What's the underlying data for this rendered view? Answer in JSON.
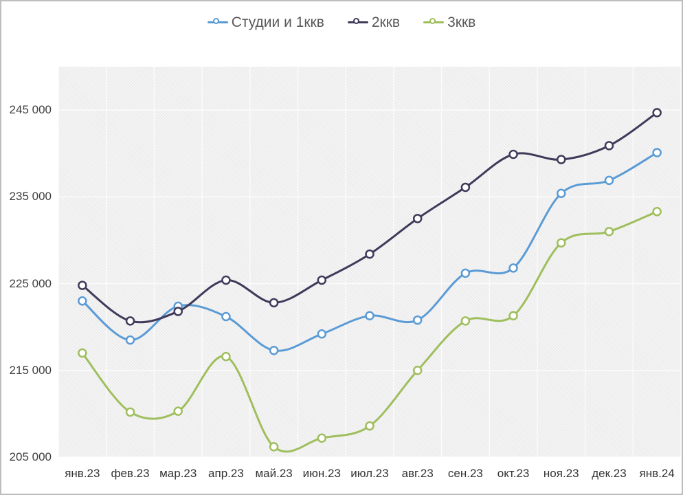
{
  "window": {
    "background": "#ffffff",
    "border_color": "#bdbdbd",
    "plot_background": "#efefef"
  },
  "legend": {
    "position": "top-center",
    "text_color": "#595959"
  },
  "chart_data": {
    "type": "line",
    "title": "",
    "xlabel": "",
    "ylabel": "",
    "categories": [
      "янв.23",
      "фев.23",
      "мар.23",
      "апр.23",
      "май.23",
      "июн.23",
      "июл.23",
      "авг.23",
      "сен.23",
      "окт.23",
      "ноя.23",
      "дек.23",
      "янв.24"
    ],
    "series": [
      {
        "name": "Студии и 1ккв",
        "color": "#5B9BD5",
        "values": [
          223000,
          218500,
          222400,
          221200,
          217300,
          219200,
          221300,
          220800,
          226200,
          226800,
          235400,
          236900,
          240100
        ]
      },
      {
        "name": "2ккв",
        "color": "#3F3A5A",
        "values": [
          224800,
          220700,
          221800,
          225400,
          222800,
          225400,
          228400,
          232500,
          236100,
          239900,
          239300,
          240900,
          244700
        ]
      },
      {
        "name": "3ккв",
        "color": "#9FBE5C",
        "values": [
          217000,
          210200,
          210300,
          216600,
          206200,
          207200,
          208600,
          215000,
          220700,
          221300,
          229700,
          231000,
          233300
        ]
      }
    ],
    "ylim": [
      205000,
      250000
    ],
    "yticks": [
      205000,
      215000,
      225000,
      235000,
      245000
    ],
    "ytick_labels": [
      "205 000",
      "215 000",
      "225 000",
      "235 000",
      "245 000"
    ],
    "grid": true,
    "marker": "open-circle",
    "smooth": true,
    "legend_position": "top"
  }
}
